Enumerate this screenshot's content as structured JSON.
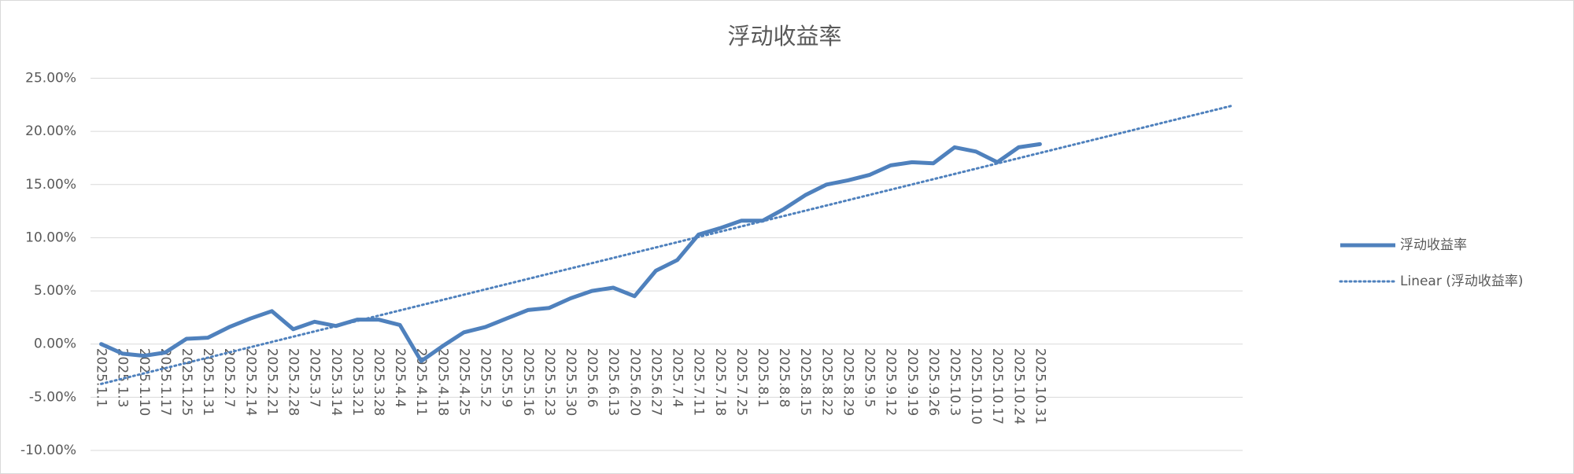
{
  "chart_data": {
    "type": "line",
    "title": "浮动收益率",
    "categories": [
      "2025.1.1",
      "2025.1.3",
      "2025.1.10",
      "2025.1.17",
      "2025.1.25",
      "2025.1.31",
      "2025.2.7",
      "2025.2.14",
      "2025.2.21",
      "2025.2.28",
      "2025.3.7",
      "2025.3.14",
      "2025.3.21",
      "2025.3.28",
      "2025.4.4",
      "2025.4.11",
      "2025.4.18",
      "2025.4.25",
      "2025.5.2",
      "2025.5.9",
      "2025.5.16",
      "2025.5.23",
      "2025.5.30",
      "2025.6.6",
      "2025.6.13",
      "2025.6.20",
      "2025.6.27",
      "2025.7.4",
      "2025.7.11",
      "2025.7.18",
      "2025.7.25",
      "2025.8.1",
      "2025.8.8",
      "2025.8.15",
      "2025.8.22",
      "2025.8.29",
      "2025.9.5",
      "2025.9.12",
      "2025.9.19",
      "2025.9.26",
      "2025.10.3",
      "2025.10.10",
      "2025.10.17",
      "2025.10.24",
      "2025.10.31",
      null,
      null,
      null,
      null,
      null,
      null,
      null,
      null,
      null
    ],
    "series": [
      {
        "name": "浮动收益率",
        "color": "#4f81bd",
        "values": [
          0.0,
          -0.9,
          -1.1,
          -0.8,
          0.5,
          0.6,
          1.6,
          2.4,
          3.1,
          1.4,
          2.1,
          1.7,
          2.3,
          2.3,
          1.8,
          -1.6,
          -0.2,
          1.1,
          1.6,
          2.4,
          3.2,
          3.4,
          4.3,
          5.0,
          5.3,
          4.5,
          6.9,
          7.9,
          10.3,
          10.9,
          11.6,
          11.6,
          12.7,
          14.0,
          15.0,
          15.4,
          15.9,
          16.8,
          17.1,
          17.0,
          18.5,
          18.1,
          17.1,
          18.5,
          18.8,
          null,
          null,
          null,
          null,
          null,
          null,
          null,
          null,
          null
        ]
      }
    ],
    "trendline": {
      "type": "linear",
      "name": "Linear (浮动收益率)",
      "color": "#4f81bd"
    },
    "ylim": [
      -10,
      25
    ],
    "yticks": [
      {
        "value": -10,
        "label": "-10.00%"
      },
      {
        "value": -5,
        "label": "-5.00%"
      },
      {
        "value": 0,
        "label": "0.00%"
      },
      {
        "value": 5,
        "label": "5.00%"
      },
      {
        "value": 10,
        "label": "10.00%"
      },
      {
        "value": 15,
        "label": "15.00%"
      },
      {
        "value": 20,
        "label": "20.00%"
      },
      {
        "value": 25,
        "label": "25.00%"
      }
    ],
    "grid": true,
    "legend": "right"
  }
}
